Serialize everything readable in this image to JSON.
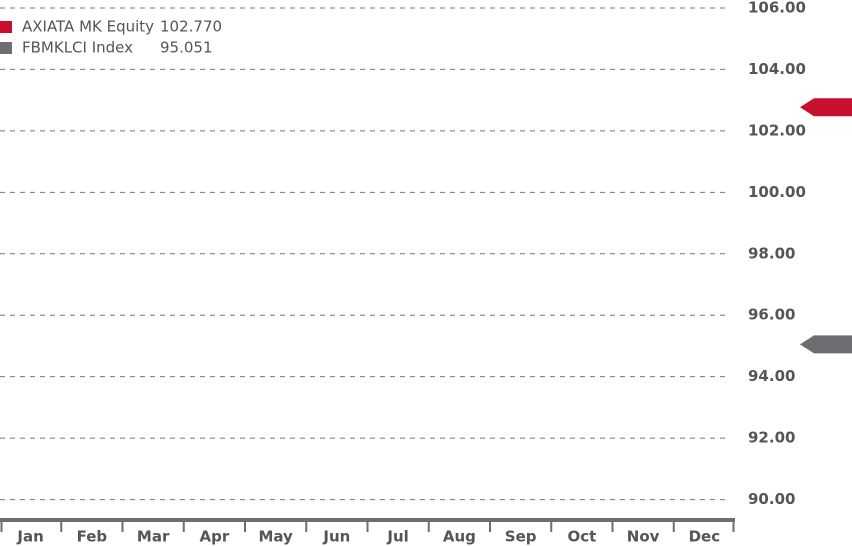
{
  "chart_data": {
    "type": "line",
    "categories": [
      "Jan",
      "Feb",
      "Mar",
      "Apr",
      "May",
      "Jun",
      "Jul",
      "Aug",
      "Sep",
      "Oct",
      "Nov",
      "Dec"
    ],
    "series": [
      {
        "name": "AXIATA MK Equity",
        "color": "#c8102e",
        "last_value": 102.77,
        "last_value_label": "102.770"
      },
      {
        "name": "FBMKLCI Index",
        "color": "#6d6e71",
        "last_value": 95.051,
        "last_value_label": "95.051"
      }
    ],
    "ylim": [
      89.4,
      106.26
    ],
    "yticks": [
      {
        "value": 90,
        "label": "90.00"
      },
      {
        "value": 92,
        "label": "92.00"
      },
      {
        "value": 94,
        "label": "94.00"
      },
      {
        "value": 96,
        "label": "96.00"
      },
      {
        "value": 98,
        "label": "98.00"
      },
      {
        "value": 100,
        "label": "100.00"
      },
      {
        "value": 102,
        "label": "102.00"
      },
      {
        "value": 104,
        "label": "104.00"
      },
      {
        "value": 106,
        "label": "106.00"
      }
    ],
    "grid": true,
    "legend": "top-left"
  }
}
